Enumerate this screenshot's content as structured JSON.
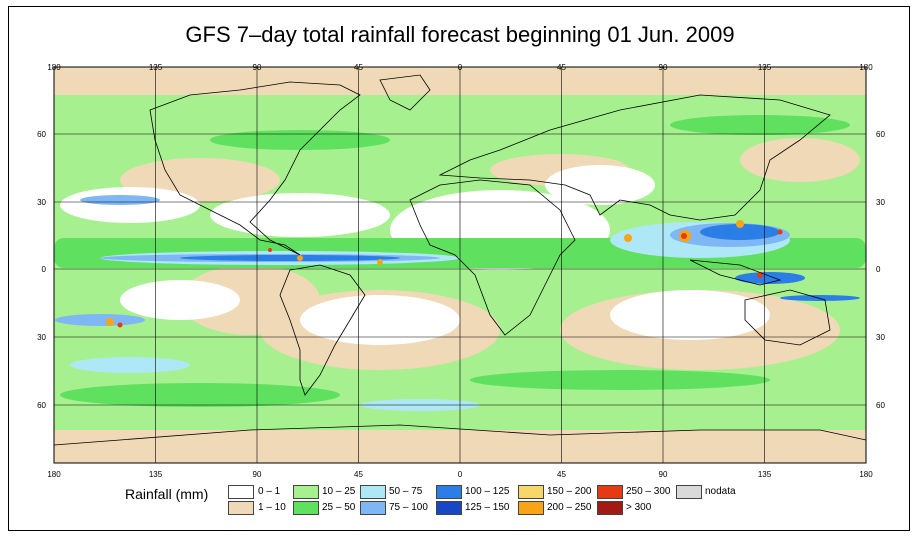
{
  "title": "GFS 7–day total rainfall forecast beginning 01 Jun. 2009",
  "axes": {
    "top_lon_labels": [
      "180",
      "135",
      "90",
      "45",
      "0",
      "45",
      "90",
      "135",
      "180"
    ],
    "bottom_lon_labels": [
      "180",
      "135",
      "90",
      "45",
      "0",
      "45",
      "90",
      "135",
      "180"
    ],
    "left_lat_labels": [
      "60",
      "30",
      "0",
      "30",
      "60"
    ],
    "right_lat_labels": [
      "60",
      "30",
      "0",
      "30",
      "60"
    ]
  },
  "legend": {
    "title": "Rainfall (mm)",
    "items": [
      {
        "label": "0 – 1",
        "color": "#ffffff"
      },
      {
        "label": "1 – 10",
        "color": "#efd9b7"
      },
      {
        "label": "10 – 25",
        "color": "#a6f08f"
      },
      {
        "label": "25 – 50",
        "color": "#5fe05f"
      },
      {
        "label": "50 – 75",
        "color": "#aee8f6"
      },
      {
        "label": "75 – 100",
        "color": "#7fb7f5"
      },
      {
        "label": "100 – 125",
        "color": "#2a7ee6"
      },
      {
        "label": "125 – 150",
        "color": "#1747c2"
      },
      {
        "label": "150 – 200",
        "color": "#f8d76a"
      },
      {
        "label": "200 – 250",
        "color": "#f7a416"
      },
      {
        "label": "250 – 300",
        "color": "#e63a14"
      },
      {
        "label": "> 300",
        "color": "#a11a14"
      },
      {
        "label": "nodata",
        "color": "#d9d9d9"
      }
    ]
  },
  "colors": {
    "ocean_background": "#a6f08f",
    "land_dry": "#ffffff",
    "frame": "#000000"
  }
}
